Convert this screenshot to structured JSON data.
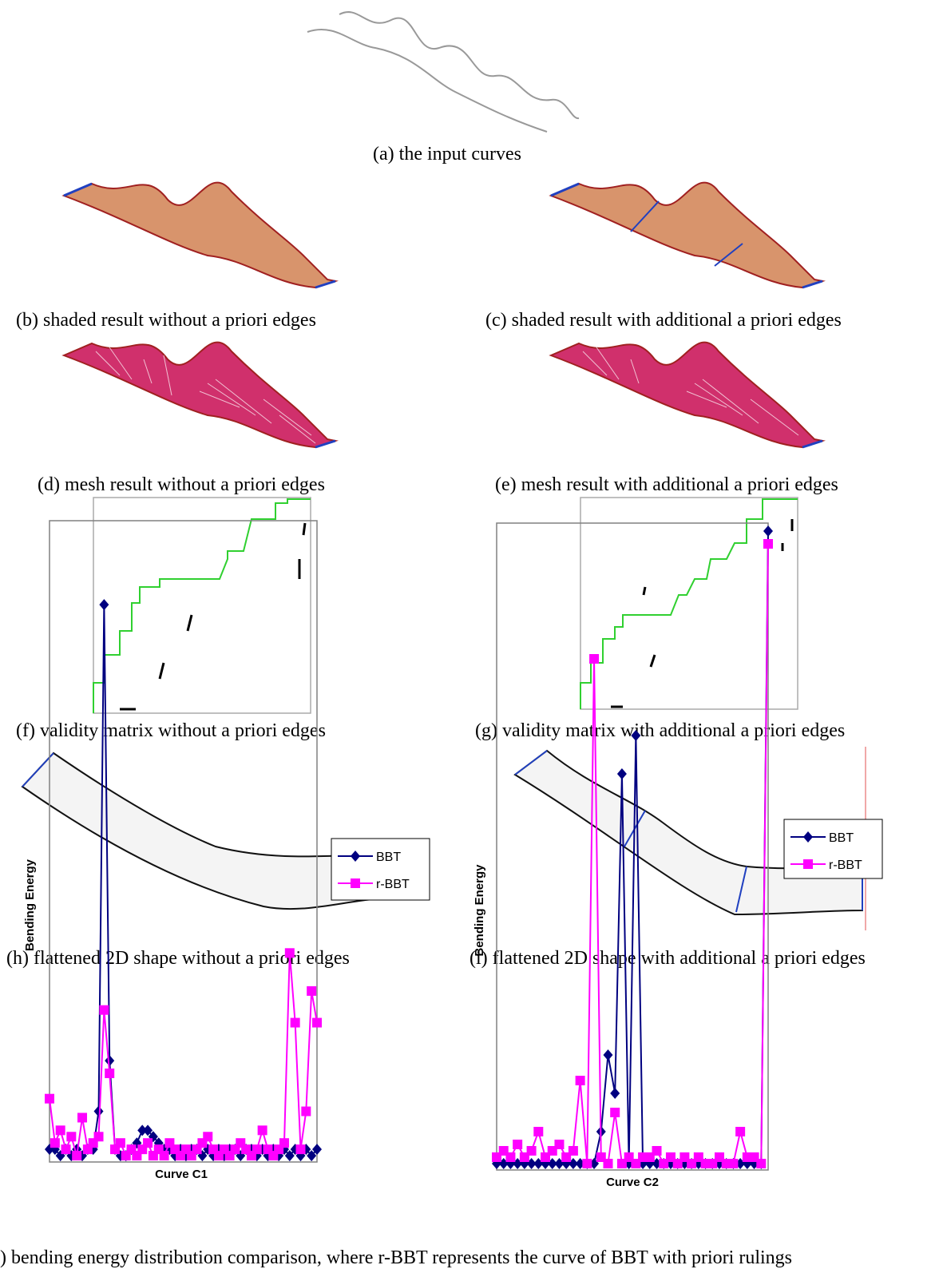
{
  "captions": {
    "a": "(a) the input curves",
    "b": "(b) shaded result without a priori edges",
    "c": "(c) shaded result with additional a priori edges",
    "d": "(d) mesh result without a priori edges",
    "e": "(e) mesh result with additional a priori edges",
    "f": "(f) validity matrix without a priori edges",
    "g": "(g) validity matrix with additional a priori edges",
    "h": "(h) flattened 2D shape without a priori edges",
    "i": "(i) flattened 2D shape with additional a priori edges",
    "j": ") bending energy distribution comparison, where r-BBT represents the curve of BBT with priori rulings"
  },
  "chart_data": [
    {
      "type": "line",
      "x_label": "Curve C1",
      "y_label": "Bending Energy",
      "ylim": [
        0,
        100
      ],
      "series": [
        {
          "name": "BBT",
          "color": "#000080",
          "marker": "diamond",
          "values": [
            2,
            2,
            1,
            2,
            1,
            2,
            1,
            2,
            2,
            8,
            88,
            16,
            2,
            1,
            1,
            2,
            3,
            5,
            5,
            4,
            3,
            2,
            2,
            1,
            2,
            1,
            2,
            2,
            1,
            2,
            1,
            2,
            1,
            2,
            2,
            1,
            2,
            2,
            1,
            2,
            1,
            2,
            1,
            2,
            1,
            2,
            1,
            2,
            1,
            2
          ]
        },
        {
          "name": "r-BBT",
          "color": "#ff00ff",
          "marker": "square",
          "values": [
            10,
            3,
            5,
            2,
            4,
            1,
            7,
            2,
            3,
            4,
            24,
            14,
            2,
            3,
            1,
            2,
            1,
            2,
            3,
            1,
            2,
            1,
            3,
            2,
            1,
            2,
            1,
            2,
            3,
            4,
            2,
            1,
            2,
            1,
            2,
            3,
            2,
            1,
            2,
            5,
            2,
            1,
            2,
            3,
            33,
            22,
            2,
            8,
            27,
            22
          ]
        }
      ]
    },
    {
      "type": "line",
      "x_label": "Curve C2",
      "y_label": "Bending Energy",
      "ylim": [
        0,
        100
      ],
      "series": [
        {
          "name": "BBT",
          "color": "#000080",
          "marker": "diamond",
          "values": [
            1,
            1,
            1,
            1,
            1,
            1,
            1,
            1,
            1,
            1,
            1,
            1,
            1,
            1,
            1,
            6,
            18,
            12,
            62,
            1,
            68,
            1,
            1,
            1,
            1,
            1,
            1,
            1,
            1,
            1,
            1,
            1,
            1,
            1,
            1,
            1,
            1,
            1,
            1,
            100
          ]
        },
        {
          "name": "r-BBT",
          "color": "#ff00ff",
          "marker": "square",
          "values": [
            2,
            3,
            2,
            4,
            2,
            3,
            6,
            2,
            3,
            4,
            2,
            3,
            14,
            1,
            80,
            2,
            1,
            9,
            1,
            2,
            1,
            2,
            2,
            3,
            1,
            2,
            1,
            2,
            1,
            2,
            1,
            1,
            2,
            1,
            1,
            6,
            2,
            2,
            1,
            98
          ]
        }
      ]
    }
  ]
}
